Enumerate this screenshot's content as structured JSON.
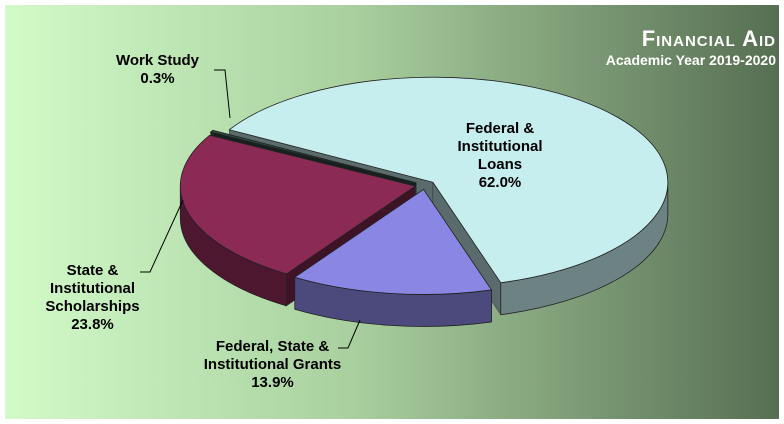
{
  "chart_data": {
    "type": "pie",
    "title": "Financial Aid",
    "subtitle": "Academic Year 2019-2020",
    "categories": [
      "Federal & Institutional Loans",
      "Federal, State & Institutional Grants",
      "State & Institutional Scholarships",
      "Work Study"
    ],
    "values": [
      62.0,
      13.9,
      23.8,
      0.3
    ],
    "value_labels": [
      "62.0%",
      "13.9%",
      "23.8%",
      "0.3%"
    ],
    "colors": [
      "#c6eeee",
      "#8a86e4",
      "#8a2a55",
      "#2e4a40"
    ]
  }
}
